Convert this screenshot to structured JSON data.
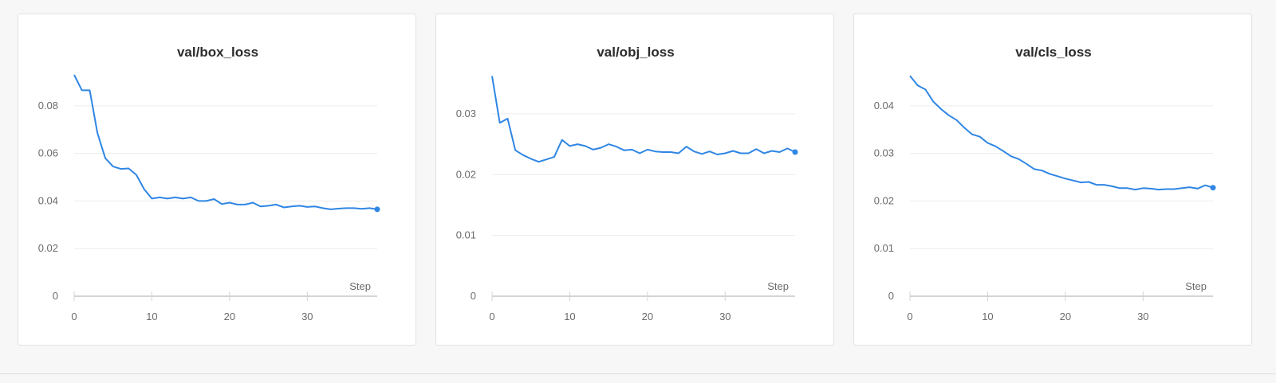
{
  "theme": {
    "line_color": "#2f86e4",
    "grid_color": "#ececec",
    "axis_color": "#d4d4d4"
  },
  "chart_data": [
    {
      "type": "line",
      "title": "val/box_loss",
      "xlabel": "Step",
      "ylabel": "",
      "xlim": [
        0,
        39
      ],
      "ylim": [
        0,
        0.093
      ],
      "xticks": [
        0,
        10,
        20,
        30
      ],
      "xtick_labels": [
        "0",
        "10",
        "20",
        "30"
      ],
      "yticks": [
        0,
        0.02,
        0.04,
        0.06,
        0.08
      ],
      "ytick_labels": [
        "0",
        "0.02",
        "0.04",
        "0.06",
        "0.08"
      ],
      "grid": true,
      "series": [
        {
          "x": [
            0,
            1,
            2,
            3,
            4,
            5,
            6,
            7,
            8,
            9,
            10,
            11,
            12,
            13,
            14,
            15,
            16,
            17,
            18,
            19,
            20,
            21,
            22,
            23,
            24,
            25,
            26,
            27,
            28,
            29,
            30,
            31,
            32,
            33,
            34,
            35,
            36,
            37,
            38,
            39
          ],
          "values": [
            0.093,
            0.0865,
            0.0865,
            0.0685,
            0.058,
            0.0545,
            0.0535,
            0.0537,
            0.051,
            0.045,
            0.041,
            0.0415,
            0.041,
            0.0415,
            0.041,
            0.0415,
            0.04,
            0.04,
            0.0408,
            0.0387,
            0.0393,
            0.0385,
            0.0385,
            0.0393,
            0.0377,
            0.038,
            0.0385,
            0.0373,
            0.0377,
            0.038,
            0.0375,
            0.0377,
            0.037,
            0.0365,
            0.0368,
            0.037,
            0.037,
            0.0367,
            0.037,
            0.0365
          ]
        }
      ]
    },
    {
      "type": "line",
      "title": "val/obj_loss",
      "xlabel": "Step",
      "ylabel": "",
      "xlim": [
        0,
        39
      ],
      "ylim": [
        0,
        0.0364
      ],
      "xticks": [
        0,
        10,
        20,
        30
      ],
      "xtick_labels": [
        "0",
        "10",
        "20",
        "30"
      ],
      "yticks": [
        0,
        0.01,
        0.02,
        0.03
      ],
      "ytick_labels": [
        "0",
        "0.01",
        "0.02",
        "0.03"
      ],
      "grid": true,
      "series": [
        {
          "x": [
            0,
            1,
            2,
            3,
            4,
            5,
            6,
            7,
            8,
            9,
            10,
            11,
            12,
            13,
            14,
            15,
            16,
            17,
            18,
            19,
            20,
            21,
            22,
            23,
            24,
            25,
            26,
            27,
            28,
            29,
            30,
            31,
            32,
            33,
            34,
            35,
            36,
            37,
            38,
            39
          ],
          "values": [
            0.0362,
            0.0285,
            0.0292,
            0.024,
            0.0232,
            0.0226,
            0.0221,
            0.0225,
            0.0229,
            0.0257,
            0.0247,
            0.025,
            0.0247,
            0.0241,
            0.0244,
            0.025,
            0.0246,
            0.024,
            0.0241,
            0.0235,
            0.0241,
            0.0238,
            0.0237,
            0.0237,
            0.0235,
            0.0246,
            0.0238,
            0.0234,
            0.0238,
            0.0233,
            0.0235,
            0.0239,
            0.0235,
            0.0235,
            0.0242,
            0.0235,
            0.0239,
            0.0237,
            0.0243,
            0.0237
          ]
        }
      ]
    },
    {
      "type": "line",
      "title": "val/cls_loss",
      "xlabel": "Step",
      "ylabel": "",
      "xlim": [
        0,
        39
      ],
      "ylim": [
        0,
        0.0465
      ],
      "xticks": [
        0,
        10,
        20,
        30
      ],
      "xtick_labels": [
        "0",
        "10",
        "20",
        "30"
      ],
      "yticks": [
        0,
        0.01,
        0.02,
        0.03,
        0.04
      ],
      "ytick_labels": [
        "0",
        "0.01",
        "0.02",
        "0.03",
        "0.04"
      ],
      "grid": true,
      "series": [
        {
          "x": [
            0,
            1,
            2,
            3,
            4,
            5,
            6,
            7,
            8,
            9,
            10,
            11,
            12,
            13,
            14,
            15,
            16,
            17,
            18,
            19,
            20,
            21,
            22,
            23,
            24,
            25,
            26,
            27,
            28,
            29,
            30,
            31,
            32,
            33,
            34,
            35,
            36,
            37,
            38,
            39
          ],
          "values": [
            0.0463,
            0.0443,
            0.0434,
            0.0409,
            0.0393,
            0.038,
            0.037,
            0.0354,
            0.034,
            0.0335,
            0.0322,
            0.0315,
            0.0305,
            0.0294,
            0.0288,
            0.0278,
            0.0267,
            0.0264,
            0.0257,
            0.0252,
            0.0247,
            0.0243,
            0.0239,
            0.024,
            0.0234,
            0.0234,
            0.0231,
            0.0227,
            0.0227,
            0.0224,
            0.0227,
            0.0226,
            0.0224,
            0.0225,
            0.0225,
            0.0227,
            0.0229,
            0.0226,
            0.0233,
            0.0228
          ]
        }
      ]
    }
  ]
}
